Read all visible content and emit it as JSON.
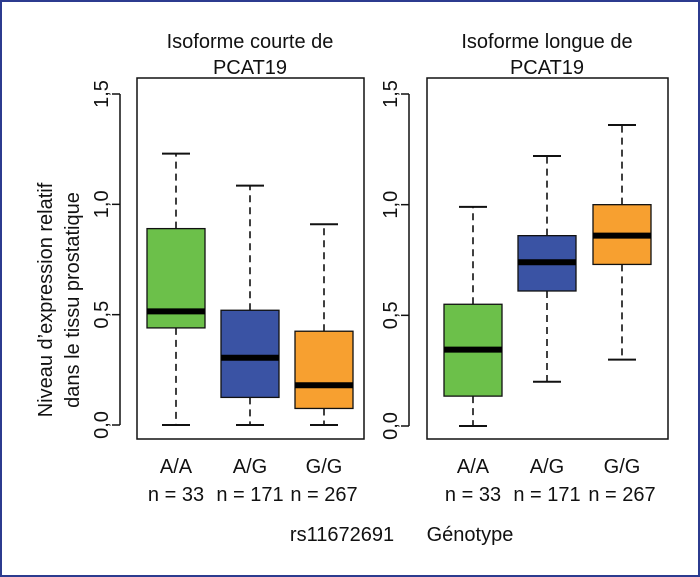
{
  "y_axis_label": {
    "line1": "Niveau d’expression relatif",
    "line2": "dans le tissu prostatique"
  },
  "x_axis_footer": {
    "snp": "rs11672691",
    "label": "Génotype"
  },
  "colors": {
    "frame": "#2c3b8f",
    "A/A": "#6cc04a",
    "A/G": "#3a53a4",
    "G/G": "#f7a030",
    "median": "#000000"
  },
  "chart_data": [
    {
      "type": "box",
      "title_line1": "Isoforme courte de",
      "title_line2": "PCAT19",
      "ylim": [
        0,
        1.5
      ],
      "y_ticks": [
        0,
        0.5,
        1.0,
        1.5
      ],
      "y_tick_labels": [
        "0,0",
        "0,5",
        "1,0",
        "1,5"
      ],
      "categories": [
        "A/A",
        "A/G",
        "G/G"
      ],
      "n_labels": [
        "n = 33",
        "n = 171",
        "n = 267"
      ],
      "boxes": [
        {
          "min": 0.0,
          "q1": 0.44,
          "median": 0.515,
          "q3": 0.89,
          "max": 1.23
        },
        {
          "min": 0.0,
          "q1": 0.125,
          "median": 0.305,
          "q3": 0.52,
          "max": 1.085
        },
        {
          "min": 0.0,
          "q1": 0.075,
          "median": 0.18,
          "q3": 0.425,
          "max": 0.91
        }
      ]
    },
    {
      "type": "box",
      "title_line1": "Isoforme longue de",
      "title_line2": "PCAT19",
      "ylim": [
        0,
        1.5
      ],
      "y_ticks": [
        0,
        0.5,
        1.0,
        1.5
      ],
      "y_tick_labels": [
        "0,0",
        "0,5",
        "1,0",
        "1,5"
      ],
      "categories": [
        "A/A",
        "A/G",
        "G/G"
      ],
      "n_labels": [
        "n = 33",
        "n = 171",
        "n = 267"
      ],
      "boxes": [
        {
          "min": 0.0,
          "q1": 0.135,
          "median": 0.345,
          "q3": 0.55,
          "max": 0.99
        },
        {
          "min": 0.2,
          "q1": 0.61,
          "median": 0.74,
          "q3": 0.86,
          "max": 1.22
        },
        {
          "min": 0.3,
          "q1": 0.73,
          "median": 0.86,
          "q3": 1.0,
          "max": 1.36
        }
      ]
    }
  ]
}
